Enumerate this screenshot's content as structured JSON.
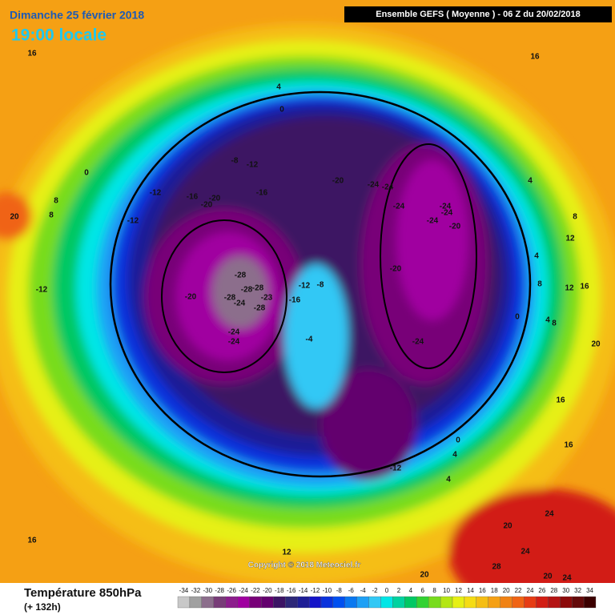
{
  "header": {
    "date": "Dimanche 25 février 2018",
    "time": "19:00 locale",
    "model": "Ensemble GEFS  ( Moyenne )  -  06 Z du 20/02/2018"
  },
  "footer": {
    "title": "Température 850hPa",
    "lead": "(+ 132h)",
    "copyright": "Copyright © 2018 Meteociel.fr"
  },
  "legend": {
    "labels": [
      "-34",
      "-32",
      "-30",
      "-28",
      "-26",
      "-24",
      "-22",
      "-20",
      "-18",
      "-16",
      "-14",
      "-12",
      "-10",
      "-8",
      "-6",
      "-4",
      "-2",
      "0",
      "2",
      "4",
      "6",
      "8",
      "10",
      "12",
      "14",
      "16",
      "18",
      "20",
      "22",
      "24",
      "26",
      "28",
      "30",
      "32",
      "34"
    ],
    "colors": [
      "#c8c8c8",
      "#a0a0a0",
      "#8c6e8c",
      "#783c78",
      "#8c1e8c",
      "#a000a0",
      "#780078",
      "#64006e",
      "#3c1464",
      "#2d2878",
      "#1e1e96",
      "#1414c8",
      "#0a32dc",
      "#0050f0",
      "#0a78f0",
      "#1ea0f5",
      "#32c8f5",
      "#00e6e6",
      "#00d2a0",
      "#00c864",
      "#32d232",
      "#78dc1e",
      "#b4e614",
      "#e6f014",
      "#f5dc14",
      "#f5be14",
      "#f5a014",
      "#f08214",
      "#f06414",
      "#e63c14",
      "#d21e14",
      "#b41414",
      "#8c0a0a",
      "#640a0a",
      "#3c0000"
    ]
  },
  "map": {
    "labels": [
      "16",
      "16",
      "4",
      "0",
      "-8",
      "-12",
      "-12",
      "-16",
      "-16",
      "-20",
      "-20",
      "-12",
      "0",
      "8",
      "8",
      "20",
      "-20",
      "-24",
      "-24",
      "-24",
      "-24",
      "-24",
      "-24",
      "-20",
      "4",
      "8",
      "12",
      "4",
      "8",
      "12",
      "16",
      "-20",
      "-28",
      "-28",
      "-28",
      "-28",
      "-23",
      "-24",
      "-28",
      "-20",
      "-16",
      "-12",
      "-8",
      "-12",
      "-24",
      "-24",
      "-4",
      "-24",
      "0",
      "4",
      "8",
      "20",
      "16",
      "0",
      "4",
      "16",
      "-12",
      "4",
      "20",
      "24",
      "24",
      "16",
      "12",
      "28",
      "20",
      "24",
      "20"
    ]
  }
}
